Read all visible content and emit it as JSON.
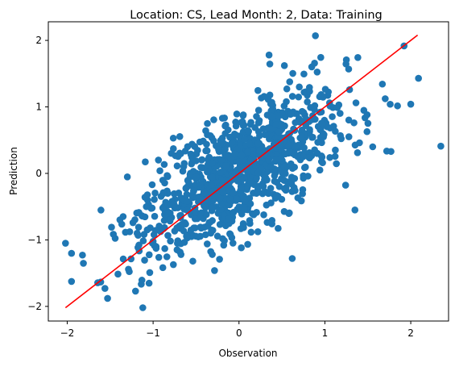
{
  "chart_data": {
    "type": "scatter",
    "title": "Location: CS, Lead Month: 2, Data: Training",
    "xlabel": "Observation",
    "ylabel": "Prediction",
    "xlim": [
      -2.22,
      2.44
    ],
    "ylim": [
      -2.22,
      2.28
    ],
    "x_ticks": [
      -2,
      -1,
      0,
      1,
      2
    ],
    "y_ticks": [
      -2,
      -1,
      0,
      1,
      2
    ],
    "x_tick_labels": [
      "−2",
      "−1",
      "0",
      "1",
      "2"
    ],
    "y_tick_labels": [
      "−2",
      "−1",
      "0",
      "1",
      "2"
    ],
    "grid": false,
    "legend": "none",
    "scatter_color": "#1f77b4",
    "line_color": "#ff0000",
    "point_count": 1050,
    "correlation": 0.72,
    "outliers": [
      [
        2.35,
        0.41
      ],
      [
        0.89,
        2.07
      ],
      [
        1.77,
        0.33
      ],
      [
        2.09,
        1.43
      ],
      [
        -1.12,
        -2.02
      ],
      [
        -1.53,
        -1.88
      ],
      [
        -2.02,
        -1.05
      ],
      [
        0.35,
        1.78
      ],
      [
        1.35,
        -0.55
      ],
      [
        0.62,
        -1.28
      ]
    ],
    "fit_line": {
      "x": [
        -2.02,
        2.08
      ],
      "y": [
        -2.02,
        2.08
      ]
    }
  }
}
